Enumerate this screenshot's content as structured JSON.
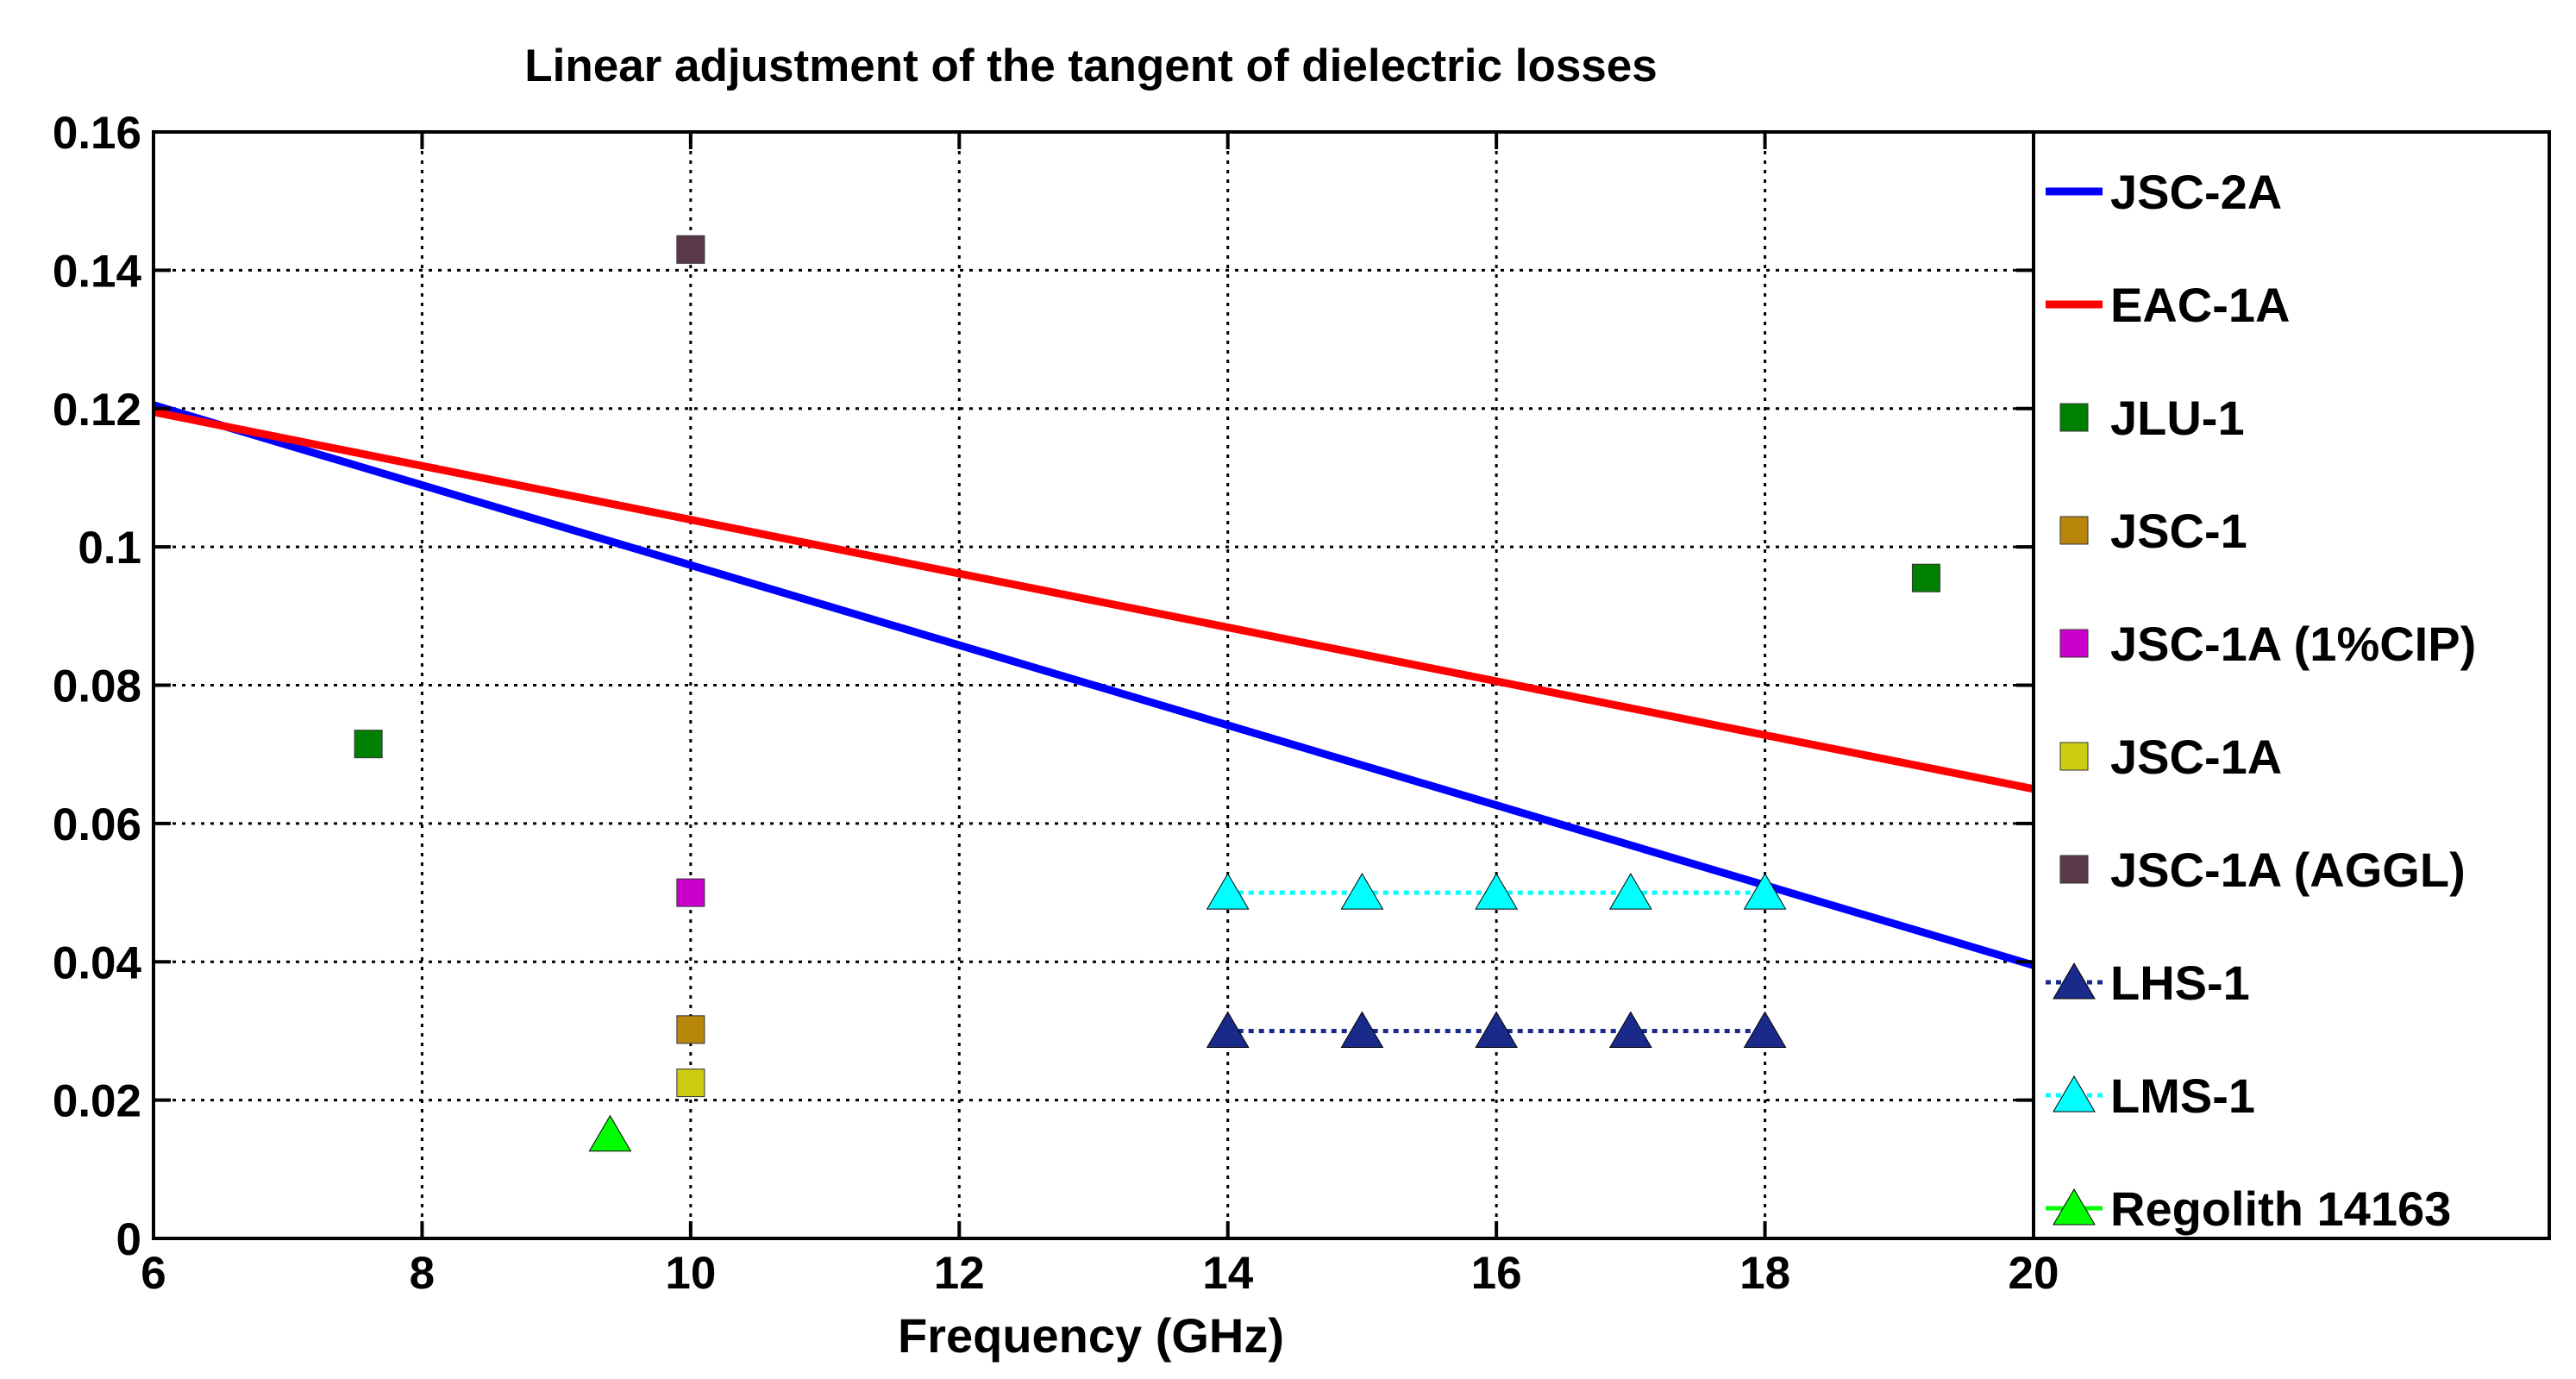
{
  "chart_data": {
    "type": "scatter",
    "title": "Linear adjustment of the tangent of dielectric losses",
    "xlabel": "Frequency (GHz)",
    "ylabel": "",
    "xlim": [
      6,
      20
    ],
    "ylim": [
      0,
      0.16
    ],
    "xticks": [
      6,
      8,
      10,
      12,
      14,
      16,
      18,
      20
    ],
    "xtick_labels": [
      "6",
      "8",
      "10",
      "12",
      "14",
      "16",
      "18",
      "20"
    ],
    "yticks": [
      0,
      0.02,
      0.04,
      0.06,
      0.08,
      0.1,
      0.12,
      0.14,
      0.16
    ],
    "ytick_labels": [
      "0",
      "0.02",
      "0.04",
      "0.06",
      "0.08",
      "0.1",
      "0.12",
      "0.14",
      "0.16"
    ],
    "grid": true,
    "legend_position": "right-outside",
    "series": [
      {
        "name": "JSC-2A",
        "kind": "line",
        "color": "#0000ff",
        "x": [
          6,
          20
        ],
        "y": [
          0.1205,
          0.0395
        ]
      },
      {
        "name": "EAC-1A",
        "kind": "line",
        "color": "#ff0000",
        "x": [
          6,
          20
        ],
        "y": [
          0.1195,
          0.065
        ]
      },
      {
        "name": "JLU-1",
        "kind": "marker",
        "marker": "square",
        "color": "#008000",
        "x": [
          7.6,
          19.2
        ],
        "y": [
          0.0715,
          0.0955
        ]
      },
      {
        "name": "JSC-1",
        "kind": "marker",
        "marker": "square",
        "color": "#b8860b",
        "x": [
          10
        ],
        "y": [
          0.0302
        ]
      },
      {
        "name": "JSC-1A (1%CIP)",
        "kind": "marker",
        "marker": "square",
        "color": "#cc00cc",
        "x": [
          10
        ],
        "y": [
          0.05
        ]
      },
      {
        "name": "JSC-1A",
        "kind": "marker",
        "marker": "square",
        "color": "#cccc11",
        "x": [
          10
        ],
        "y": [
          0.0225
        ]
      },
      {
        "name": "JSC-1A (AGGL)",
        "kind": "marker",
        "marker": "square",
        "color": "#5a3a4a",
        "x": [
          10
        ],
        "y": [
          0.143
        ]
      },
      {
        "name": "LHS-1",
        "kind": "marker-line",
        "marker": "triangle",
        "color": "#1a2a8a",
        "dashed": true,
        "x": [
          14,
          15,
          16,
          17,
          18
        ],
        "y": [
          0.03,
          0.03,
          0.03,
          0.03,
          0.03
        ]
      },
      {
        "name": "LMS-1",
        "kind": "marker-line",
        "marker": "triangle",
        "color": "#00ffff",
        "dashed": true,
        "x": [
          14,
          15,
          16,
          17,
          18
        ],
        "y": [
          0.05,
          0.05,
          0.05,
          0.05,
          0.05
        ]
      },
      {
        "name": "Regolith 14163",
        "kind": "marker",
        "marker": "triangle",
        "color": "#00ff00",
        "x": [
          9.4
        ],
        "y": [
          0.015
        ]
      }
    ]
  }
}
